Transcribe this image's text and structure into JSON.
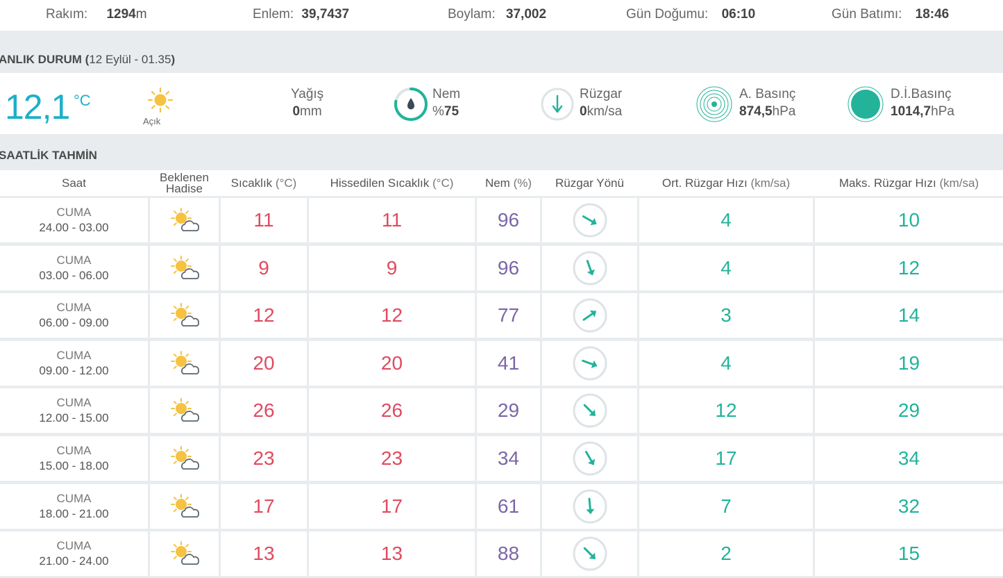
{
  "top": {
    "altitude_label": "Rakım:",
    "altitude_value": "1294",
    "altitude_unit": "m",
    "lat_label": "Enlem:",
    "lat_value": "39,7437",
    "lon_label": "Boylam:",
    "lon_value": "37,002",
    "sunrise_label": "Gün Doğumu:",
    "sunrise_value": "06:10",
    "sunset_label": "Gün Batımı:",
    "sunset_value": "18:46"
  },
  "current": {
    "title": "ANLIK DURUM",
    "date": "12 Eylül - 01.35",
    "temp": "12,1",
    "temp_unit": "°C",
    "condition": "Açık",
    "precip_label": "Yağış",
    "precip_value": "0",
    "precip_unit": "mm",
    "humidity_label": "Nem",
    "humidity_prefix": "%",
    "humidity_value": "75",
    "wind_label": "Rüzgar",
    "wind_value": "0",
    "wind_unit": "km/sa",
    "pressure_label": "A. Basınç",
    "pressure_value": "874,5",
    "pressure_unit": "hPa",
    "sea_pressure_label": "D.İ.Basınç",
    "sea_pressure_value": "1014,7",
    "sea_pressure_unit": "hPa",
    "colors": {
      "accent": "#1bb0c9",
      "green": "#22b39a",
      "sun": "#f5c242"
    }
  },
  "forecast": {
    "title": "SAATLİK TAHMİN",
    "headers": {
      "time": "Saat",
      "event_1": "Beklenen",
      "event_2": "Hadise",
      "temp": "Sıcaklık",
      "temp_u": "(°C)",
      "feels": "Hissedilen Sıcaklık",
      "feels_u": "(°C)",
      "hum": "Nem",
      "hum_u": "(%)",
      "wdir": "Rüzgar Yönü",
      "avg": "Ort. Rüzgar Hızı",
      "avg_u": "(km/sa)",
      "max": "Maks. Rüzgar Hızı",
      "max_u": "(km/sa)"
    },
    "rows": [
      {
        "day": "CUMA",
        "range": "24.00 - 03.00",
        "icon": "partly-cloudy-icon",
        "temp": "11",
        "feels": "11",
        "hum": "96",
        "wind_dir_deg": 120,
        "avg": "4",
        "max": "10"
      },
      {
        "day": "CUMA",
        "range": "03.00 - 06.00",
        "icon": "partly-cloudy-icon",
        "temp": "9",
        "feels": "9",
        "hum": "96",
        "wind_dir_deg": 160,
        "avg": "4",
        "max": "12"
      },
      {
        "day": "CUMA",
        "range": "06.00 - 09.00",
        "icon": "partly-cloudy-icon",
        "temp": "12",
        "feels": "12",
        "hum": "77",
        "wind_dir_deg": 55,
        "avg": "3",
        "max": "14"
      },
      {
        "day": "CUMA",
        "range": "09.00 - 12.00",
        "icon": "partly-cloudy-icon",
        "temp": "20",
        "feels": "20",
        "hum": "41",
        "wind_dir_deg": 110,
        "avg": "4",
        "max": "19"
      },
      {
        "day": "CUMA",
        "range": "12.00 - 15.00",
        "icon": "partly-cloudy-icon",
        "temp": "26",
        "feels": "26",
        "hum": "29",
        "wind_dir_deg": 135,
        "avg": "12",
        "max": "29"
      },
      {
        "day": "CUMA",
        "range": "15.00 - 18.00",
        "icon": "partly-cloudy-icon",
        "temp": "23",
        "feels": "23",
        "hum": "34",
        "wind_dir_deg": 150,
        "avg": "17",
        "max": "34"
      },
      {
        "day": "CUMA",
        "range": "18.00 - 21.00",
        "icon": "partly-cloudy-icon",
        "temp": "17",
        "feels": "17",
        "hum": "61",
        "wind_dir_deg": 175,
        "avg": "7",
        "max": "32"
      },
      {
        "day": "CUMA",
        "range": "21.00 - 24.00",
        "icon": "partly-cloudy-icon",
        "temp": "13",
        "feels": "13",
        "hum": "88",
        "wind_dir_deg": 135,
        "avg": "2",
        "max": "15"
      }
    ]
  }
}
